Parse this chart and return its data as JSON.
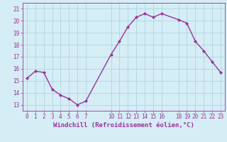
{
  "x": [
    0,
    1,
    2,
    3,
    4,
    5,
    6,
    7,
    10,
    11,
    12,
    13,
    14,
    15,
    16,
    18,
    19,
    20,
    21,
    22,
    23
  ],
  "y": [
    15.2,
    15.8,
    15.7,
    14.3,
    13.8,
    13.5,
    13.0,
    13.3,
    17.2,
    18.3,
    19.5,
    20.3,
    20.6,
    20.3,
    20.6,
    20.1,
    19.8,
    18.3,
    17.5,
    16.6,
    15.7
  ],
  "line_color": "#993399",
  "marker_color": "#993399",
  "bg_color": "#d5edf5",
  "grid_color": "#aacfde",
  "xlabel": "Windchill (Refroidissement éolien,°C)",
  "xlabel_color": "#993399",
  "yticks": [
    13,
    14,
    15,
    16,
    17,
    18,
    19,
    20,
    21
  ],
  "xticks": [
    0,
    1,
    2,
    3,
    4,
    5,
    6,
    7,
    10,
    11,
    12,
    13,
    14,
    15,
    16,
    18,
    19,
    20,
    21,
    22,
    23
  ],
  "ylim": [
    12.5,
    21.5
  ],
  "xlim": [
    -0.5,
    23.5
  ],
  "tick_color": "#993399",
  "tick_fontsize": 5.5,
  "xlabel_fontsize": 6.5,
  "linewidth": 1.0,
  "markersize": 2.2
}
